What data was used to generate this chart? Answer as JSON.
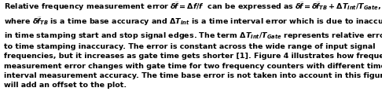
{
  "background_color": "#ffffff",
  "text_color": "#000000",
  "fontsize": 6.8,
  "figwidth": 4.86,
  "figheight": 1.35,
  "dpi": 100,
  "linespacing": 1.45,
  "line1": "Relative frequency measurement error $\\widetilde{\\delta\\!f}=\\Delta f/f$  can be expressed as $\\widetilde{\\delta\\!f}=\\widetilde{\\delta\\!f}_{TB}+\\Delta T_{Int}/T_{Gate}$,",
  "line2": "where $\\widetilde{\\delta\\!f}_{TB}$ is a time base accuracy and $\\Delta T_{Int}$ is a time interval error which is due to inaccuracy",
  "line3": "in time stamping start and stop signal edges. The term $\\Delta T_{Int}/T_{Gate}$ represents relative error due",
  "line4": "to time stamping inaccuracy. The error is constant across the wide range of input signal",
  "line5": "frequencies, but it increases as gate time gets shorter [1]. Figure 4 illustrates how frequency",
  "line6": "measurement error changes with gate time for two frequency counters with different time",
  "line7": "interval measurement accuracy. The time base error is not taken into account in this figure and",
  "line8": "will add an offset to the plot."
}
